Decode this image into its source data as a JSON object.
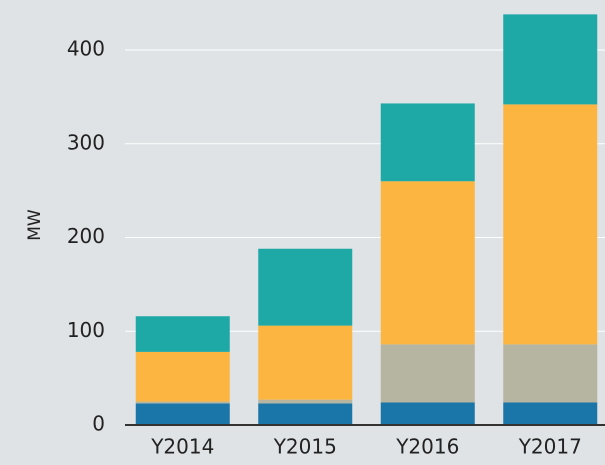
{
  "chart_data": {
    "type": "stacked_bar",
    "y_label": "MW",
    "categories": [
      "Y2014",
      "Y2015",
      "Y2016",
      "Y2017"
    ],
    "series": [
      {
        "color": "#1a75a8",
        "values": [
          23,
          23,
          24,
          24
        ]
      },
      {
        "color": "#b5b5a2",
        "values": [
          2,
          4,
          62,
          62
        ]
      },
      {
        "color": "#fbb540",
        "values": [
          53,
          79,
          174,
          256
        ]
      },
      {
        "color": "#1ea8a6",
        "values": [
          38,
          82,
          83,
          96
        ]
      }
    ],
    "ylim": [
      0,
      450
    ],
    "yticks": [
      0,
      100,
      200,
      300,
      400
    ],
    "grid": true
  }
}
